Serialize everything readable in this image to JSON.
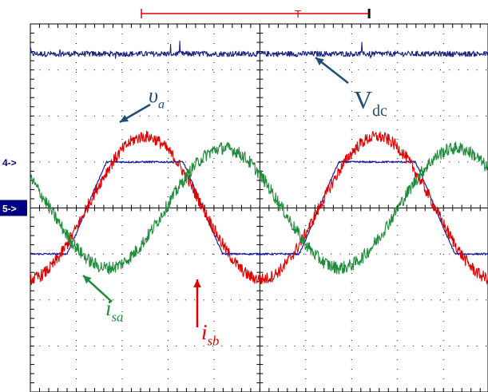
{
  "chart_data": {
    "type": "line",
    "title": "",
    "xlabel": "",
    "ylabel": "",
    "grid": true,
    "x_divisions": 10,
    "y_divisions": 8,
    "xlim": [
      0,
      10
    ],
    "ylim": [
      -4,
      4
    ],
    "x_unit": "div",
    "y_unit": "div",
    "trigger_bracket": {
      "start": 2.42,
      "end": 7.38,
      "trigger": 5.83,
      "trigger_marker": "T"
    },
    "channel_markers": [
      {
        "label": "4->",
        "level": 1.0,
        "highlighted": false
      },
      {
        "label": "5->",
        "level": 0.0,
        "highlighted": true
      }
    ],
    "series": [
      {
        "name": "Vdc",
        "color": "#1a237e",
        "kind": "dc_noise",
        "mean": 3.35,
        "noise": 0.06
      },
      {
        "name": "υa",
        "color": "#1a1a9e",
        "kind": "trapezoid",
        "offset": 0.0,
        "amplitude": 1.95,
        "clip": 1.0,
        "period": 5.06,
        "phase": 1.23
      },
      {
        "name": "isb",
        "color": "#e00000",
        "kind": "sine_noise",
        "offset": 0.0,
        "amplitude": 1.55,
        "period": 5.06,
        "phase": 1.23,
        "noise": 0.13
      },
      {
        "name": "isa",
        "color": "#1e8c3a",
        "kind": "sine_noise",
        "offset": 0.0,
        "amplitude": 1.3,
        "period": 5.06,
        "phase": 2.95,
        "noise": 0.14
      }
    ],
    "annotations": [
      {
        "text": "υ",
        "sub": "a",
        "color": "#1f4e79",
        "target": "va"
      },
      {
        "text": "V",
        "sub": "dc",
        "color": "#1f4e79",
        "target": "vdc"
      },
      {
        "text": "i",
        "sub": "sa",
        "color": "#1e8c3a",
        "target": "isa"
      },
      {
        "text": "i",
        "sub": "sb",
        "color": "#e00000",
        "target": "isb"
      }
    ]
  },
  "colors": {
    "grid": "#000000",
    "marker_bg": "#000080",
    "marker_text_normal": "#000080",
    "marker_text_highlight": "#ffffff",
    "bracket": "#e00000"
  }
}
